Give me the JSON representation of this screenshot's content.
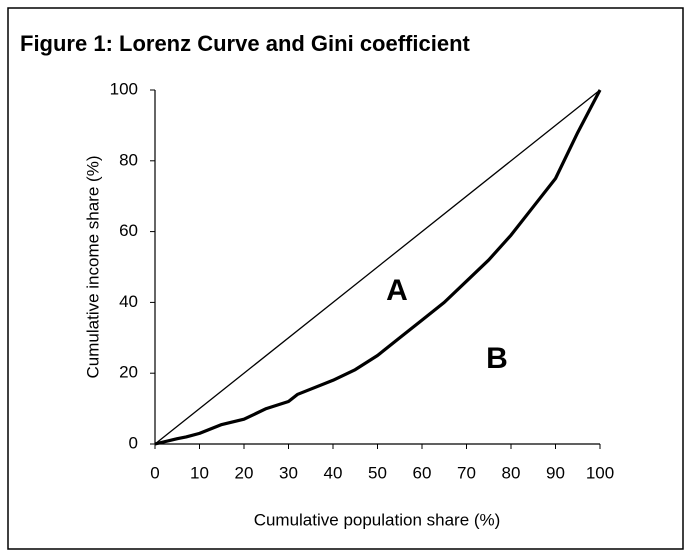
{
  "chart_data": {
    "type": "line",
    "title": "Figure 1: Lorenz Curve and Gini coefficient",
    "x_label": "Cumulative population share (%)",
    "y_label": "Cumulative income share (%)",
    "series": [
      {
        "color": "#000000",
        "x": [
          0,
          100
        ],
        "values": [
          0,
          100
        ]
      },
      {
        "color": "#000000",
        "x": [
          0,
          5,
          7,
          10,
          15,
          20,
          25,
          30,
          32,
          40,
          45,
          50,
          55,
          60,
          65,
          70,
          75,
          80,
          85,
          90,
          95,
          100
        ],
        "values": [
          0,
          1.5,
          2,
          3,
          5.5,
          7,
          10,
          12,
          14,
          18,
          21,
          25,
          30,
          35,
          40,
          46,
          52,
          59,
          67,
          75,
          88,
          100
        ]
      }
    ],
    "annotations": [
      "A",
      "B"
    ],
    "xlim": [
      0,
      100
    ],
    "ylim": [
      0,
      100
    ],
    "xticks": [
      0,
      10,
      20,
      30,
      40,
      50,
      60,
      70,
      80,
      90,
      100
    ],
    "yticks": [
      0,
      20,
      40,
      60,
      80,
      100
    ],
    "grid": false
  }
}
